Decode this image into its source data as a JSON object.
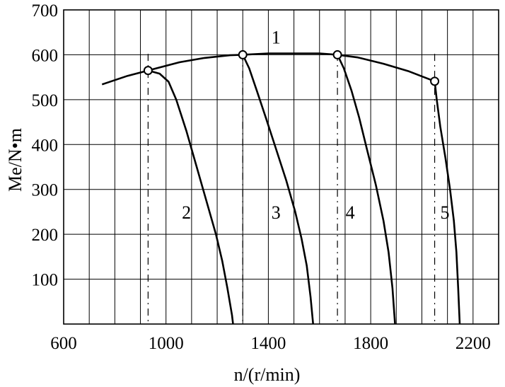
{
  "chart_data": {
    "type": "line",
    "xlabel": "n/(r/min)",
    "ylabel": "Me/N•m",
    "xlim": [
      600,
      2300
    ],
    "ylim": [
      0,
      700
    ],
    "x_ticks": [
      600,
      1000,
      1400,
      1800,
      2200
    ],
    "y_ticks": [
      100,
      200,
      300,
      400,
      500,
      600,
      700
    ],
    "grid": true,
    "series": [
      {
        "name": "1",
        "x": [
          750,
          850,
          930,
          1050,
          1150,
          1250,
          1300,
          1400,
          1500,
          1600,
          1670,
          1750,
          1850,
          1950,
          2050
        ],
        "y": [
          534,
          553,
          565,
          583,
          593,
          599,
          600,
          603,
          603,
          603,
          600,
          594,
          580,
          563,
          541
        ]
      },
      {
        "name": "2",
        "x": [
          930,
          975,
          1010,
          1040,
          1080,
          1120,
          1160,
          1195,
          1220,
          1240,
          1258,
          1262
        ],
        "y": [
          565,
          558,
          540,
          500,
          430,
          350,
          270,
          200,
          140,
          80,
          20,
          0
        ]
      },
      {
        "name": "3",
        "x": [
          1300,
          1325,
          1355,
          1390,
          1430,
          1470,
          1505,
          1530,
          1550,
          1565,
          1575
        ],
        "y": [
          600,
          570,
          520,
          460,
          390,
          320,
          250,
          190,
          130,
          60,
          0
        ]
      },
      {
        "name": "4",
        "x": [
          1670,
          1695,
          1725,
          1755,
          1785,
          1820,
          1850,
          1870,
          1885,
          1895
        ],
        "y": [
          600,
          570,
          520,
          460,
          390,
          310,
          230,
          160,
          80,
          0
        ]
      },
      {
        "name": "5",
        "x": [
          2050,
          2058,
          2072,
          2092,
          2110,
          2125,
          2135,
          2142,
          2148
        ],
        "y": [
          541,
          500,
          440,
          370,
          300,
          230,
          160,
          80,
          0
        ]
      }
    ],
    "markers": [
      {
        "x": 930,
        "y": 565
      },
      {
        "x": 1300,
        "y": 600
      },
      {
        "x": 1670,
        "y": 600
      },
      {
        "x": 2050,
        "y": 541
      }
    ],
    "dashed_verticals": [
      930,
      1300,
      1670,
      2050
    ],
    "curve_labels": [
      {
        "text": "1",
        "x": 1430,
        "y": 625
      },
      {
        "text": "2",
        "x": 1080,
        "y": 235
      },
      {
        "text": "3",
        "x": 1430,
        "y": 235
      },
      {
        "text": "4",
        "x": 1720,
        "y": 235
      },
      {
        "text": "5",
        "x": 2090,
        "y": 235
      }
    ]
  }
}
